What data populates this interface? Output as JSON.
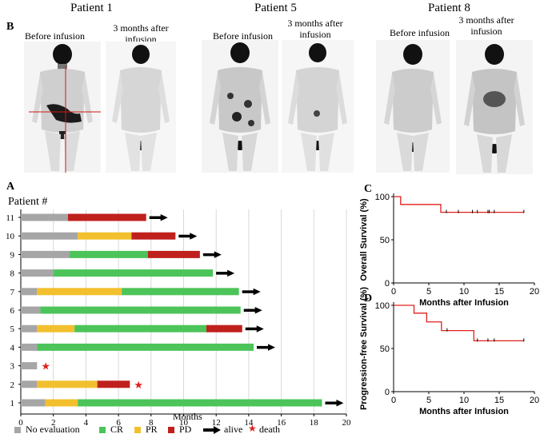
{
  "panel_b": {
    "letter": "B",
    "patients": [
      {
        "title": "Patient 1",
        "before": "Before infusion",
        "after": "3 months after infusion"
      },
      {
        "title": "Patient 5",
        "before": "Before infusion",
        "after": "3 months after infusion"
      },
      {
        "title": "Patient 8",
        "before": "Before infusion",
        "after": "3 months after infusion"
      }
    ]
  },
  "colors": {
    "no_evaluation": "#a6a6a6",
    "CR": "#4cc459",
    "PR": "#f2c02e",
    "PD": "#c0201c",
    "arrow": "#000000",
    "death": "#e0201c",
    "km_line": "#e0201c"
  },
  "chart_data": [
    {
      "panel": "A",
      "type": "bar",
      "orientation": "horizontal-stacked",
      "title": "Patient #",
      "xlabel": "Months",
      "ylabel": "Patient #",
      "xlim": [
        0,
        20
      ],
      "xticks": [
        0,
        2,
        4,
        6,
        8,
        10,
        12,
        14,
        16,
        18,
        20
      ],
      "categories": [
        "1",
        "2",
        "3",
        "4",
        "5",
        "6",
        "7",
        "8",
        "9",
        "10",
        "11"
      ],
      "series": [
        {
          "name": "No evaluation",
          "values": [
            1.5,
            1.0,
            1.0,
            1.0,
            1.0,
            1.2,
            1.0,
            2.0,
            3.0,
            3.5,
            2.9
          ]
        },
        {
          "name": "PR",
          "values": [
            2.0,
            3.7,
            0,
            0,
            2.3,
            0,
            5.2,
            0,
            0,
            3.3,
            0
          ]
        },
        {
          "name": "CR",
          "values": [
            15.0,
            0,
            0,
            13.3,
            8.1,
            12.3,
            7.2,
            9.8,
            4.8,
            0,
            0
          ]
        },
        {
          "name": "PD",
          "values": [
            0,
            2.0,
            0,
            0,
            2.2,
            0,
            0,
            0,
            3.2,
            2.7,
            4.8
          ]
        }
      ],
      "alive": [
        "1",
        "4",
        "5",
        "6",
        "7",
        "8",
        "9",
        "10",
        "11"
      ],
      "death": [
        "2",
        "3"
      ],
      "legend": [
        "No evaluation",
        "CR",
        "PR",
        "PD",
        "alive",
        "death"
      ]
    },
    {
      "panel": "C",
      "type": "line",
      "subtype": "kaplan-meier",
      "xlabel": "Months after Infusion",
      "ylabel": "Overall Survival (%)",
      "xlim": [
        0,
        20
      ],
      "ylim": [
        0,
        100
      ],
      "xticks": [
        0,
        5,
        10,
        15,
        20
      ],
      "yticks": [
        0,
        50,
        100
      ],
      "steps": [
        [
          0,
          100
        ],
        [
          1.0,
          100
        ],
        [
          1.0,
          90.9
        ],
        [
          6.7,
          90.9
        ],
        [
          6.7,
          81.8
        ],
        [
          18.5,
          81.8
        ]
      ],
      "censored": [
        7.5,
        9.2,
        11.2,
        11.9,
        13.4,
        13.6,
        14.3,
        18.5
      ]
    },
    {
      "panel": "D",
      "type": "line",
      "subtype": "kaplan-meier",
      "xlabel": "Months after Infusion",
      "ylabel": "Progression-free Survival (%)",
      "xlim": [
        0,
        20
      ],
      "ylim": [
        0,
        100
      ],
      "xticks": [
        0,
        5,
        10,
        15,
        20
      ],
      "yticks": [
        0,
        50,
        100
      ],
      "steps": [
        [
          0,
          100
        ],
        [
          2.9,
          100
        ],
        [
          2.9,
          90.9
        ],
        [
          4.7,
          90.9
        ],
        [
          4.7,
          80.8
        ],
        [
          6.8,
          80.8
        ],
        [
          6.8,
          70.7
        ],
        [
          11.4,
          70.7
        ],
        [
          11.4,
          58.9
        ],
        [
          18.5,
          58.9
        ]
      ],
      "censored": [
        7.6,
        11.9,
        13.4,
        14.3,
        18.5
      ]
    }
  ]
}
